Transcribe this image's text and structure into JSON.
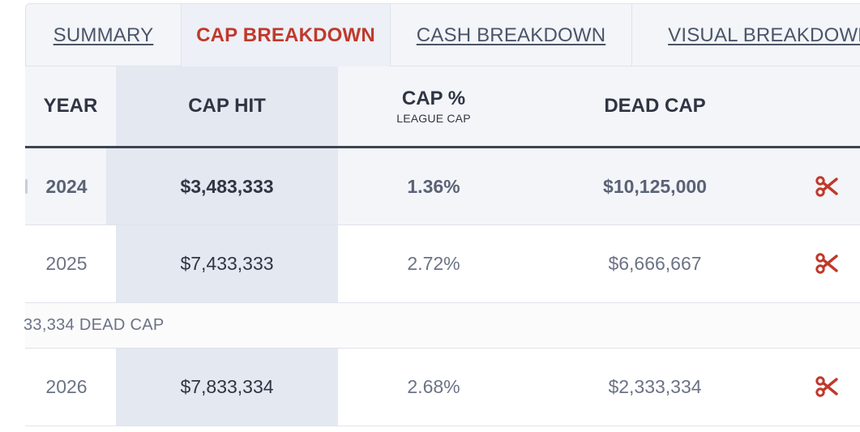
{
  "tabs": [
    {
      "label": "SUMMARY",
      "active": false
    },
    {
      "label": "CAP BREAKDOWN",
      "active": true
    },
    {
      "label": "CASH BREAKDOWN",
      "active": false
    },
    {
      "label": "VISUAL BREAKDOWN",
      "active": false
    }
  ],
  "table": {
    "headers": {
      "year": "YEAR",
      "cap_hit": "CAP HIT",
      "cap_pct": "CAP %",
      "cap_pct_sub": "LEAGUE CAP",
      "dead_cap": "DEAD CAP"
    },
    "rows": [
      {
        "year": "2024",
        "cap_hit": "$3,483,333",
        "cap_pct": "1.36%",
        "dead_cap": "$10,125,000",
        "current": true
      },
      {
        "year": "2025",
        "cap_hit": "$7,433,333",
        "cap_pct": "2.72%",
        "dead_cap": "$6,666,667",
        "current": false
      },
      {
        "year": "2026",
        "cap_hit": "$7,833,334",
        "cap_pct": "2.68%",
        "dead_cap": "$2,333,334",
        "current": false
      }
    ],
    "note": "33,334 DEAD CAP"
  },
  "colors": {
    "accent": "#c0392b",
    "header_bg": "#f3f5f9",
    "cap_column_bg": "#e4e8f1",
    "text_muted": "#6b7385",
    "text_dark": "#2f3542"
  },
  "icons": {
    "release": "scissors-icon"
  }
}
